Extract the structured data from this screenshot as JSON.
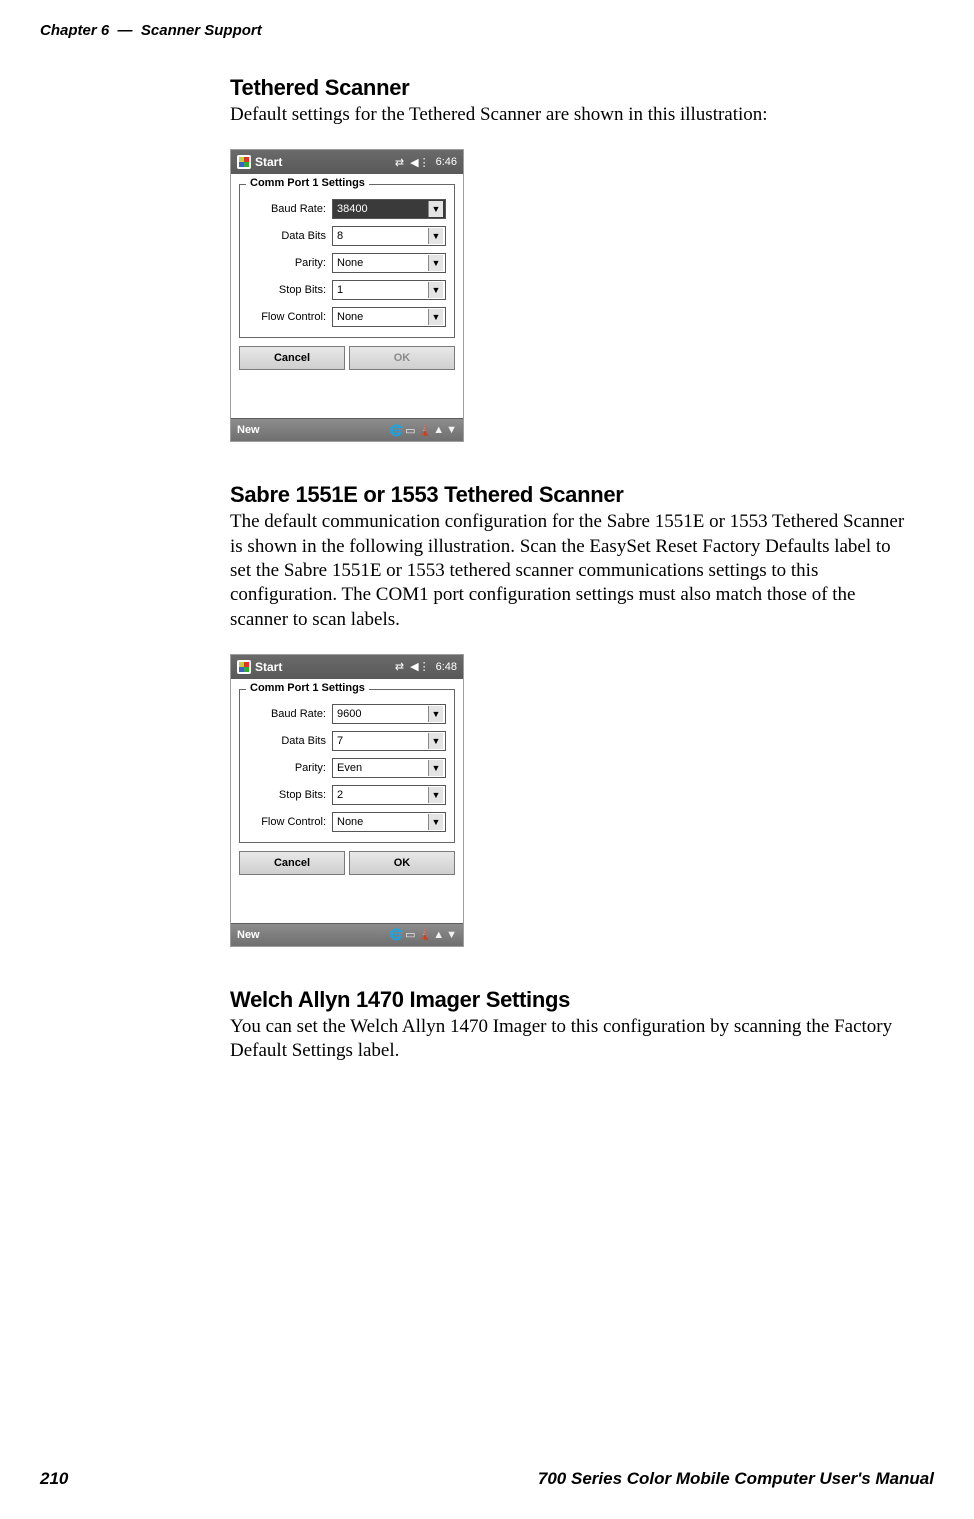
{
  "header": {
    "chapter": "Chapter 6",
    "dash": "—",
    "title": "Scanner Support"
  },
  "sections": {
    "s1": {
      "heading": "Tethered Scanner",
      "body": "Default settings for the Tethered Scanner are shown in this illustration:"
    },
    "s2": {
      "heading": "Sabre 1551E or 1553 Tethered Scanner",
      "body": "The default communication configuration for the Sabre 1551E or 1553 Tethered Scanner is shown in the following illustration. Scan the EasySet Reset Factory Defaults label to set the Sabre 1551E or 1553 tethered scanner communications settings to this configuration. The COM1 port configuration settings must also match those of the scanner to scan labels."
    },
    "s3": {
      "heading": "Welch Allyn 1470 Imager Settings",
      "body": "You can set the Welch Allyn 1470 Imager to this configuration by scanning the Factory Default Settings label."
    }
  },
  "device1": {
    "titlebar_left": "Start",
    "clock": "6:46",
    "group_legend": "Comm Port 1 Settings",
    "rows": {
      "baud": {
        "label": "Baud Rate:",
        "value": "38400"
      },
      "data": {
        "label": "Data Bits",
        "value": "8"
      },
      "parity": {
        "label": "Parity:",
        "value": "None"
      },
      "stop": {
        "label": "Stop Bits:",
        "value": "1"
      },
      "flow": {
        "label": "Flow Control:",
        "value": "None"
      }
    },
    "buttons": {
      "cancel": "Cancel",
      "ok": "OK"
    },
    "taskbar_left": "New"
  },
  "device2": {
    "titlebar_left": "Start",
    "clock": "6:48",
    "group_legend": "Comm Port 1 Settings",
    "rows": {
      "baud": {
        "label": "Baud Rate:",
        "value": "9600"
      },
      "data": {
        "label": "Data Bits",
        "value": "7"
      },
      "parity": {
        "label": "Parity:",
        "value": "Even"
      },
      "stop": {
        "label": "Stop Bits:",
        "value": "2"
      },
      "flow": {
        "label": "Flow Control:",
        "value": "None"
      }
    },
    "buttons": {
      "cancel": "Cancel",
      "ok": "OK"
    },
    "taskbar_left": "New"
  },
  "footer": {
    "page_number": "210",
    "manual_title": "700 Series Color Mobile Computer User's Manual"
  },
  "colors": {
    "text": "#000000",
    "titlebar": "#5f5f5f",
    "taskbar": "#7c7c7c",
    "combo_selected_bg": "#3a3a3a"
  }
}
